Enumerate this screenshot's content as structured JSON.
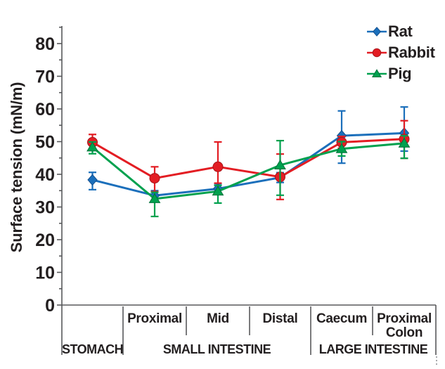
{
  "style": {
    "axis_color": "#58595b",
    "text_color": "#231f20",
    "background": "#ffffff",
    "artifact_color": "#a7a9ac"
  },
  "chart_data": {
    "type": "line",
    "title": "",
    "xlabel": "",
    "ylabel": "Surface tension (mN/m)",
    "ylim": [
      0,
      85
    ],
    "yticks": [
      0,
      10,
      20,
      30,
      40,
      50,
      60,
      70,
      80
    ],
    "minor_tick_step": 5,
    "grid": false,
    "legend_position": "top-right",
    "categories": [
      "",
      "Proximal",
      "Mid",
      "Distal",
      "Caecum",
      "Proximal Colon"
    ],
    "groups": [
      {
        "label": "STOMACH",
        "cols": [
          0,
          0
        ]
      },
      {
        "label": "SMALL INTESTINE",
        "cols": [
          1,
          3
        ]
      },
      {
        "label": "LARGE INTESTINE",
        "cols": [
          4,
          5
        ]
      }
    ],
    "series": [
      {
        "name": "Rat",
        "marker": "diamond",
        "color": "#1b6fbb",
        "edge_color": "#14508f",
        "values": [
          38.3,
          33.5,
          35.6,
          39.0,
          51.8,
          52.6
        ],
        "err_up": [
          2.3,
          1.5,
          1.5,
          1.5,
          7.6,
          8.0
        ],
        "err_down": [
          3.0,
          1.5,
          1.5,
          1.5,
          8.4,
          5.5
        ]
      },
      {
        "name": "Rabbit",
        "marker": "circle",
        "color": "#e31d23",
        "edge_color": "#a8151a",
        "values": [
          49.8,
          38.8,
          42.3,
          39.2,
          49.8,
          50.8
        ],
        "err_up": [
          2.4,
          3.5,
          7.6,
          7.0,
          1.8,
          5.6
        ],
        "err_down": [
          2.0,
          4.1,
          5.0,
          6.9,
          1.8,
          5.9
        ]
      },
      {
        "name": "Pig",
        "marker": "triangle",
        "color": "#00a14e",
        "edge_color": "#00713a",
        "values": [
          48.3,
          32.5,
          34.8,
          42.8,
          47.8,
          49.5
        ],
        "err_up": [
          1.6,
          2.0,
          1.8,
          7.5,
          2.2,
          2.3
        ],
        "err_down": [
          2.0,
          5.4,
          3.6,
          9.2,
          2.2,
          4.6
        ]
      }
    ]
  }
}
